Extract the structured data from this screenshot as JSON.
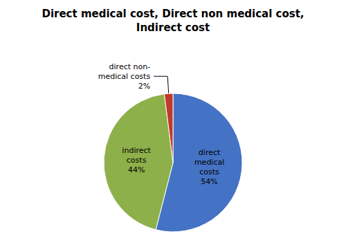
{
  "chart_data": {
    "type": "pie",
    "title": "Direct medical cost, Direct non medical cost,\nIndirect cost",
    "values": [
      54,
      44,
      2
    ],
    "value_labels": [
      "direct\nmedical\ncosts\n54%",
      "indirect\ncosts\n44%",
      "direct non-\nmedical costs\n2%"
    ],
    "colors": [
      "#4472c4",
      "#8db04a",
      "#c0392b"
    ],
    "data_labels": true
  }
}
